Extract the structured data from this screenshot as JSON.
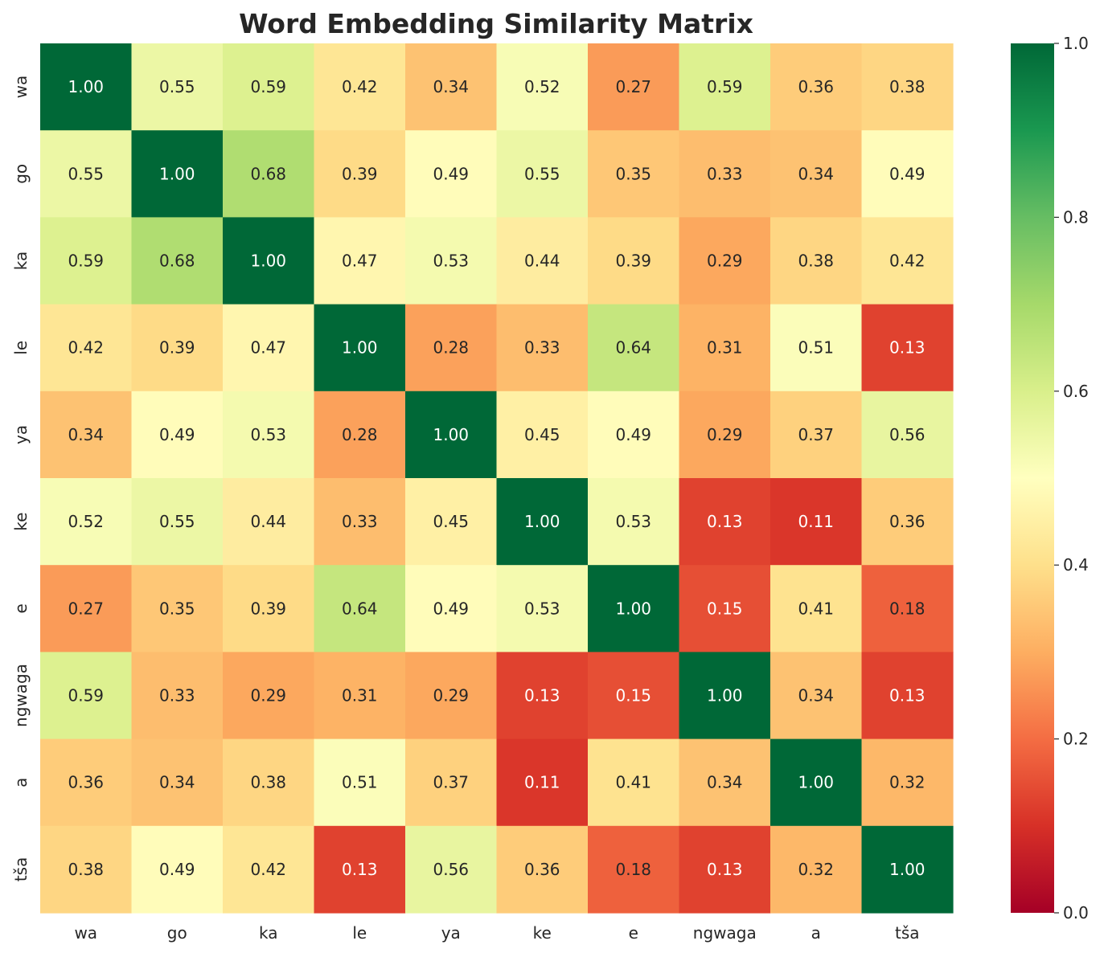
{
  "chart_data": {
    "type": "heatmap",
    "title": "Word Embedding Similarity Matrix",
    "xlabel": "",
    "ylabel": "",
    "x_categories": [
      "wa",
      "go",
      "ka",
      "le",
      "ya",
      "ke",
      "e",
      "ngwaga",
      "a",
      "tša"
    ],
    "y_categories": [
      "wa",
      "go",
      "ka",
      "le",
      "ya",
      "ke",
      "e",
      "ngwaga",
      "a",
      "tša"
    ],
    "values": [
      [
        1.0,
        0.55,
        0.59,
        0.42,
        0.34,
        0.52,
        0.27,
        0.59,
        0.36,
        0.38
      ],
      [
        0.55,
        1.0,
        0.68,
        0.39,
        0.49,
        0.55,
        0.35,
        0.33,
        0.34,
        0.49
      ],
      [
        0.59,
        0.68,
        1.0,
        0.47,
        0.53,
        0.44,
        0.39,
        0.29,
        0.38,
        0.42
      ],
      [
        0.42,
        0.39,
        0.47,
        1.0,
        0.28,
        0.33,
        0.64,
        0.31,
        0.51,
        0.13
      ],
      [
        0.34,
        0.49,
        0.53,
        0.28,
        1.0,
        0.45,
        0.49,
        0.29,
        0.37,
        0.56
      ],
      [
        0.52,
        0.55,
        0.44,
        0.33,
        0.45,
        1.0,
        0.53,
        0.13,
        0.11,
        0.36
      ],
      [
        0.27,
        0.35,
        0.39,
        0.64,
        0.49,
        0.53,
        1.0,
        0.15,
        0.41,
        0.18
      ],
      [
        0.59,
        0.33,
        0.29,
        0.31,
        0.29,
        0.13,
        0.15,
        1.0,
        0.34,
        0.13
      ],
      [
        0.36,
        0.34,
        0.38,
        0.51,
        0.37,
        0.11,
        0.41,
        0.34,
        1.0,
        0.32
      ],
      [
        0.38,
        0.49,
        0.42,
        0.13,
        0.56,
        0.36,
        0.18,
        0.13,
        0.32,
        1.0
      ]
    ],
    "value_format": "0.00",
    "colormap": "RdYlGn",
    "color_range": [
      0.0,
      1.0
    ],
    "colorbar_ticks": [
      "0.0",
      "0.2",
      "0.4",
      "0.6",
      "0.8",
      "1.0"
    ],
    "colorbar_tick_values": [
      0.0,
      0.2,
      0.4,
      0.6,
      0.8,
      1.0
    ],
    "grid": false,
    "legend": "colorbar-right"
  }
}
